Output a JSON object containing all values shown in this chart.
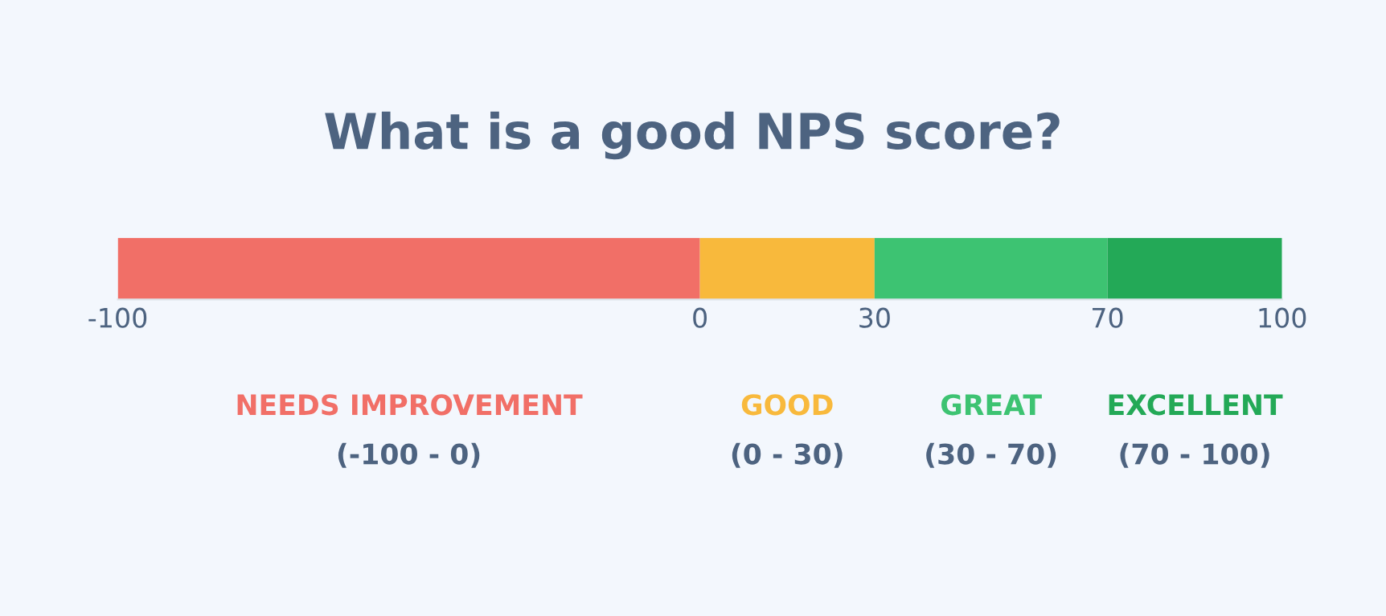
{
  "chart_data": {
    "type": "bar",
    "title": "What is a good NPS score?",
    "orientation": "horizontal",
    "stacked": true,
    "categories": [
      null
    ],
    "series": [
      {
        "name": "NEEDS IMPROVEMENT",
        "color": "#f16f67",
        "values": [
          -100
        ]
      },
      {
        "name": "GOOD",
        "color": "#f8b93c",
        "values": [
          30
        ]
      },
      {
        "name": "GREAT",
        "color": "#3dc372",
        "values": [
          40
        ]
      },
      {
        "name": "EXCELLENT",
        "color": "#23a957",
        "values": [
          30
        ]
      }
    ],
    "xlim": [
      -100,
      100
    ],
    "xticks": [
      -100,
      0,
      30,
      70,
      100
    ],
    "annotations": [
      "(-100 - 0)",
      "(0 - 30)",
      "(30 - 70)",
      "(70 - 100)"
    ],
    "grid": false,
    "legend": false
  }
}
